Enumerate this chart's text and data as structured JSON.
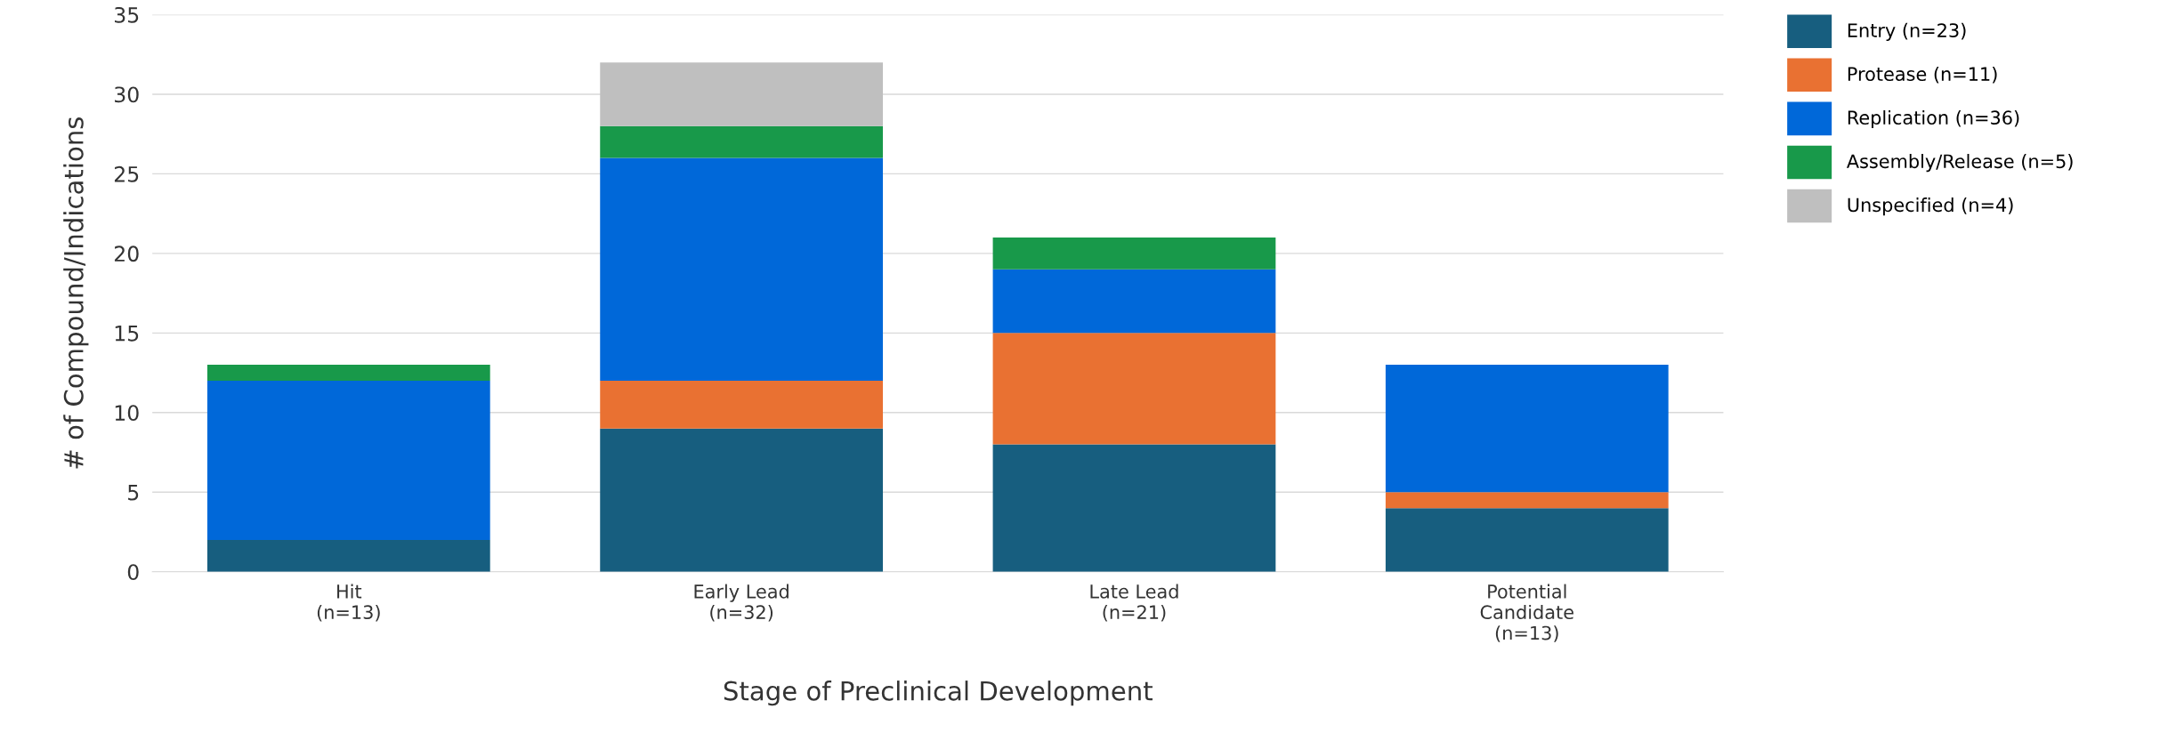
{
  "chart_data": {
    "type": "bar",
    "stacked": true,
    "xlabel": "Stage of Preclinical Development",
    "ylabel": "# of Compound/Indications",
    "categories": [
      "Hit\n(n=13)",
      "Early Lead\n(n=32)",
      "Late Lead\n(n=21)",
      "Potential\nCandidate\n(n=13)"
    ],
    "series": [
      {
        "name": "Entry (n=23)",
        "color": "#175e7f",
        "values": [
          2,
          9,
          8,
          4
        ]
      },
      {
        "name": "Protease (n=11)",
        "color": "#e97132",
        "values": [
          0,
          3,
          7,
          1
        ]
      },
      {
        "name": "Replication (n=36)",
        "color": "#0068d9",
        "values": [
          10,
          14,
          4,
          8
        ]
      },
      {
        "name": "Assembly/Release (n=5)",
        "color": "#18994a",
        "values": [
          1,
          2,
          2,
          0
        ]
      },
      {
        "name": "Unspecified (n=4)",
        "color": "#bfbfbf",
        "values": [
          0,
          4,
          0,
          0
        ]
      }
    ],
    "ylim": [
      0,
      35
    ],
    "yticks": [
      0,
      5,
      10,
      15,
      20,
      25,
      30,
      35
    ],
    "grid": "y",
    "legend": "right"
  }
}
